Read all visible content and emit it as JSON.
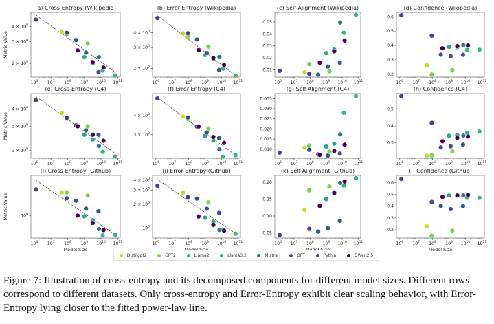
{
  "chart_data": {
    "type": "scatter",
    "xlabel": "Model Size",
    "ylabel": "Metric Value",
    "xscale": "log",
    "x_ticks": [
      "10^6",
      "10^7",
      "10^8",
      "10^9",
      "10^10",
      "10^11"
    ],
    "models": [
      {
        "name": "Distilgpt2",
        "color": "#bddf26"
      },
      {
        "name": "GPT2",
        "color": "#7ad151"
      },
      {
        "name": "Llama2",
        "color": "#35b779"
      },
      {
        "name": "Llama3.2",
        "color": "#22a884"
      },
      {
        "name": "Mistral",
        "color": "#2a788e"
      },
      {
        "name": "OPT",
        "color": "#3b528b"
      },
      {
        "name": "Pythia",
        "color": "#414487"
      },
      {
        "name": "QWen2.5",
        "color": "#440154"
      }
    ],
    "points_meta": [
      {
        "model": "Pythia",
        "log10_size": 6.1
      },
      {
        "model": "Distilgpt2",
        "log10_size": 7.65
      },
      {
        "model": "GPT2",
        "log10_size": 7.95
      },
      {
        "model": "Pythia",
        "log10_size": 7.95
      },
      {
        "model": "OPT",
        "log10_size": 8.5
      },
      {
        "model": "QWen2.5",
        "log10_size": 8.6
      },
      {
        "model": "Llama3.2",
        "log10_size": 9.0
      },
      {
        "model": "OPT",
        "log10_size": 9.1
      },
      {
        "model": "GPT2",
        "log10_size": 9.2
      },
      {
        "model": "Llama3.2",
        "log10_size": 9.5
      },
      {
        "model": "QWen2.5",
        "log10_size": 9.5
      },
      {
        "model": "OPT",
        "log10_size": 9.85
      },
      {
        "model": "Mistral",
        "log10_size": 9.87
      },
      {
        "model": "Llama2",
        "log10_size": 10.1
      },
      {
        "model": "QWen2.5",
        "log10_size": 10.15
      },
      {
        "model": "Llama2",
        "log10_size": 10.85
      }
    ],
    "panels": [
      {
        "title": "(a) Cross-Entropy (Wikipedia)",
        "yscale": "log",
        "ylim": [
          1.55,
          5.2
        ],
        "yticks": [
          {
            "v": 2,
            "label": "2 × 10^0"
          },
          {
            "v": 3,
            "label": "3 × 10^0"
          },
          {
            "v": 4,
            "label": "4 × 10^0"
          }
        ],
        "fit": [
          [
            6.1,
            4.95
          ],
          [
            10.85,
            1.7
          ]
        ],
        "values": [
          4.55,
          3.6,
          3.45,
          3.55,
          3.1,
          2.55,
          2.25,
          2.45,
          2.9,
          2.0,
          2.05,
          1.7,
          2.25,
          1.75,
          1.85,
          1.6
        ]
      },
      {
        "title": "(b) Error-Entropy (Wikipedia)",
        "yscale": "log",
        "ylim": [
          1.7,
          5.9
        ],
        "yticks": [
          {
            "v": 2,
            "label": "2 × 10^0"
          },
          {
            "v": 3,
            "label": "3 × 10^0"
          },
          {
            "v": 4,
            "label": "4 × 10^0"
          }
        ],
        "fit": [
          [
            6.1,
            5.55
          ],
          [
            10.85,
            1.75
          ]
        ],
        "values": [
          5.3,
          3.95,
          3.7,
          3.95,
          3.5,
          2.85,
          2.6,
          2.7,
          3.05,
          2.4,
          2.45,
          1.95,
          2.5,
          2.0,
          2.15,
          1.75
        ]
      },
      {
        "title": "(c) Self-Alignment (Wikipedia)",
        "yscale": "linear",
        "ylim": [
          0.004,
          0.058
        ],
        "yticks": [
          {
            "v": 0.01,
            "label": "0.01"
          },
          {
            "v": 0.02,
            "label": "0.02"
          },
          {
            "v": 0.03,
            "label": "0.03"
          },
          {
            "v": 0.04,
            "label": "0.04"
          },
          {
            "v": 0.05,
            "label": "0.05"
          }
        ],
        "values": [
          0.0092,
          0.008,
          0.0148,
          0.0068,
          0.006,
          0.016,
          0.024,
          0.0128,
          0.0088,
          0.027,
          0.0255,
          0.016,
          0.0495,
          0.041,
          0.0345,
          0.056
        ]
      },
      {
        "title": "(d) Confidence (Wikipedia)",
        "yscale": "linear",
        "ylim": [
          0.18,
          0.63
        ],
        "yticks": [
          {
            "v": 0.2,
            "label": "0.2"
          },
          {
            "v": 0.3,
            "label": "0.3"
          },
          {
            "v": 0.4,
            "label": "0.4"
          },
          {
            "v": 0.5,
            "label": "0.5"
          },
          {
            "v": 0.6,
            "label": "0.6"
          }
        ],
        "values": [
          0.61,
          0.262,
          0.198,
          0.468,
          0.336,
          0.38,
          0.39,
          0.325,
          0.228,
          0.388,
          0.395,
          0.335,
          0.402,
          0.37,
          0.4,
          0.37
        ]
      },
      {
        "title": "(e) Cross-Entropy (C4)",
        "yscale": "log",
        "ylim": [
          1.75,
          5.2
        ],
        "yticks": [
          {
            "v": 2,
            "label": "2 × 10^0"
          },
          {
            "v": 3,
            "label": "3 × 10^0"
          },
          {
            "v": 4,
            "label": "4 × 10^0"
          }
        ],
        "fit": [
          [
            6.1,
            4.95
          ],
          [
            10.85,
            1.9
          ]
        ],
        "values": [
          4.65,
          3.75,
          3.4,
          3.45,
          3.05,
          3.0,
          2.6,
          2.8,
          3.0,
          2.4,
          2.6,
          2.6,
          2.15,
          1.95,
          2.35,
          1.8
        ]
      },
      {
        "title": "(f) Error-Entropy (C4)",
        "yscale": "log",
        "ylim": [
          2.1,
          5.6
        ],
        "yticks": [
          {
            "v": 3,
            "label": "3 × 10^0"
          },
          {
            "v": 4,
            "label": "4 × 10^0"
          }
        ],
        "fit": [
          [
            6.1,
            5.25
          ],
          [
            10.85,
            2.2
          ]
        ],
        "values": [
          5.2,
          3.95,
          3.8,
          3.9,
          3.4,
          3.4,
          2.95,
          3.1,
          3.3,
          2.75,
          2.9,
          2.85,
          2.4,
          2.15,
          2.65,
          2.2
        ]
      },
      {
        "title": "(g) Self-Alignment (C4)",
        "yscale": "linear",
        "ylim": [
          0.0055,
          0.0375
        ],
        "yticks": [
          {
            "v": 0.01,
            "label": "0.010"
          },
          {
            "v": 0.015,
            "label": "0.015"
          },
          {
            "v": 0.02,
            "label": "0.020"
          },
          {
            "v": 0.025,
            "label": "0.025"
          },
          {
            "v": 0.03,
            "label": "0.030"
          },
          {
            "v": 0.035,
            "label": "0.035"
          }
        ],
        "values": [
          0.0083,
          0.0107,
          0.0118,
          0.0097,
          0.0074,
          0.0072,
          0.0113,
          0.0068,
          0.0088,
          0.0127,
          0.0091,
          0.0078,
          0.0173,
          0.028,
          0.0122,
          0.0363
        ]
      },
      {
        "title": "(h) Confidence (C4)",
        "yscale": "linear",
        "ylim": [
          0.21,
          0.59
        ],
        "yticks": [
          {
            "v": 0.3,
            "label": "0.3"
          },
          {
            "v": 0.4,
            "label": "0.4"
          },
          {
            "v": 0.5,
            "label": "0.5"
          }
        ],
        "values": [
          0.575,
          0.225,
          0.227,
          0.418,
          0.274,
          0.31,
          0.342,
          0.28,
          0.25,
          0.345,
          0.33,
          0.29,
          0.343,
          0.36,
          0.338,
          0.367
        ]
      },
      {
        "title": "(i) Cross-Entropy (Github)",
        "yscale": "log",
        "ylim": [
          0.55,
          2.9
        ],
        "yticks": [
          {
            "v": 1,
            "label": "10^0"
          }
        ],
        "fit": [
          [
            6.1,
            2.55
          ],
          [
            10.85,
            0.6
          ]
        ],
        "values": [
          2.0,
          1.85,
          1.85,
          1.58,
          1.48,
          1.0,
          0.98,
          1.2,
          1.7,
          0.88,
          0.82,
          1.12,
          0.7,
          0.59,
          0.68,
          0.6
        ]
      },
      {
        "title": "(j) Error-Entropy (Github)",
        "yscale": "log",
        "ylim": [
          0.75,
          4.6
        ],
        "yticks": [
          {
            "v": 1,
            "label": "10^0"
          },
          {
            "v": 2,
            "label": "2 × 10^0"
          },
          {
            "v": 3,
            "label": "3 × 10^0"
          },
          {
            "v": 4,
            "label": "4 × 10^0"
          }
        ],
        "fit": [
          [
            6.1,
            4.1
          ],
          [
            10.85,
            0.85
          ]
        ],
        "values": [
          3.4,
          2.8,
          2.4,
          2.45,
          2.35,
          1.4,
          1.35,
          1.75,
          2.1,
          1.2,
          1.1,
          1.55,
          0.95,
          0.95,
          0.93,
          0.85
        ]
      },
      {
        "title": "(k) Self-Alignment (Github)",
        "yscale": "linear",
        "ylim": [
          0.035,
          0.22
        ],
        "yticks": [
          {
            "v": 0.05,
            "label": "0.05"
          },
          {
            "v": 0.1,
            "label": "0.10"
          },
          {
            "v": 0.15,
            "label": "0.15"
          },
          {
            "v": 0.2,
            "label": "0.20"
          }
        ],
        "values": [
          0.044,
          0.118,
          0.176,
          0.062,
          0.054,
          0.13,
          0.15,
          0.064,
          0.187,
          0.17,
          0.168,
          0.086,
          0.198,
          0.19,
          0.202,
          0.212
        ]
      },
      {
        "title": "(l) Confidence (Github)",
        "yscale": "linear",
        "ylim": [
          0.13,
          0.66
        ],
        "yticks": [
          {
            "v": 0.2,
            "label": "0.2"
          },
          {
            "v": 0.3,
            "label": "0.3"
          },
          {
            "v": 0.4,
            "label": "0.4"
          },
          {
            "v": 0.5,
            "label": "0.5"
          },
          {
            "v": 0.6,
            "label": "0.6"
          }
        ],
        "values": [
          0.63,
          0.228,
          0.15,
          0.435,
          0.402,
          0.478,
          0.49,
          0.375,
          0.193,
          0.495,
          0.49,
          0.4,
          0.49,
          0.47,
          0.495,
          0.47
        ]
      }
    ]
  },
  "caption": "Figure 7: Illustration of cross-entropy and its decomposed components for different model sizes. Different rows correspond to different datasets. Only cross-entropy and Error-Entropy exhibit clear scaling behavior, with Error-Entropy lying closer to the fitted power-law line."
}
